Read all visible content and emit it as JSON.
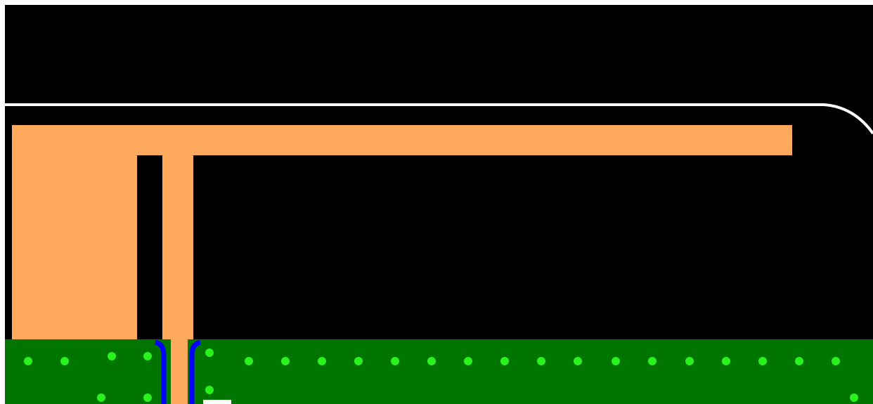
{
  "colors": {
    "canvas_margin": "#ffffff",
    "substrate": "#000000",
    "board_outline": "#ffffff",
    "copper": "#ffa95c",
    "ground_plane": "#007500",
    "via": "#29f21f",
    "feed_clearance": "#0000ff",
    "silkscreen": "#ffffff"
  },
  "layers": [
    {
      "name": "board-outline",
      "color_key": "board_outline"
    },
    {
      "name": "top-copper",
      "color_key": "copper"
    },
    {
      "name": "ground-pour",
      "color_key": "ground_plane"
    },
    {
      "name": "ground-vias",
      "color_key": "via"
    },
    {
      "name": "feed-clearance",
      "color_key": "feed_clearance"
    }
  ]
}
